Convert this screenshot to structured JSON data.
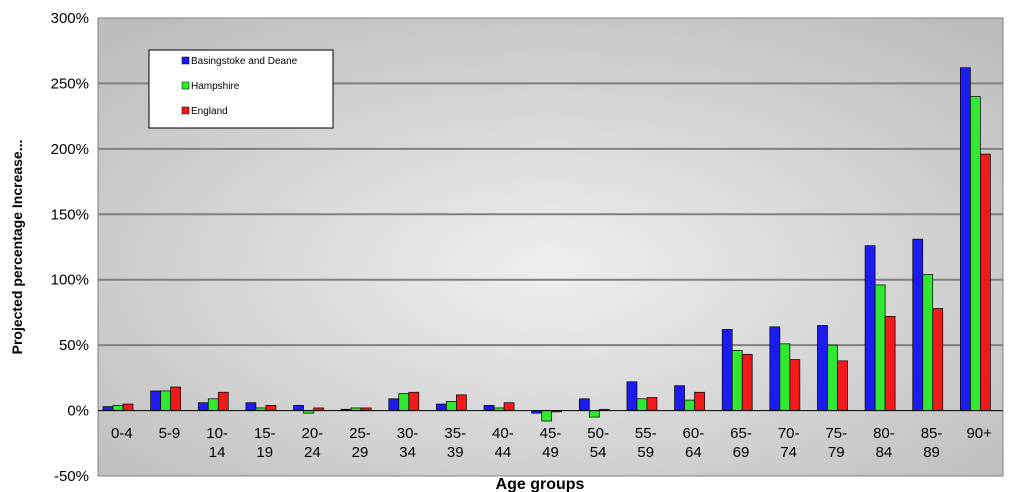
{
  "chart_data": {
    "type": "bar",
    "xlabel": "Age groups",
    "ylabel": "Projected percentage Increase...",
    "ylim": [
      -50,
      300
    ],
    "yticks": [
      -50,
      0,
      50,
      100,
      150,
      200,
      250,
      300
    ],
    "ytick_labels": [
      "-50%",
      "0%",
      "50%",
      "100%",
      "150%",
      "200%",
      "250%",
      "300%"
    ],
    "grid": true,
    "legend_position": "top-left",
    "categories": [
      {
        "line1": "0-4",
        "line2": ""
      },
      {
        "line1": "5-9",
        "line2": ""
      },
      {
        "line1": "10-",
        "line2": "14"
      },
      {
        "line1": "15-",
        "line2": "19"
      },
      {
        "line1": "20-",
        "line2": "24"
      },
      {
        "line1": "25-",
        "line2": "29"
      },
      {
        "line1": "30-",
        "line2": "34"
      },
      {
        "line1": "35-",
        "line2": "39"
      },
      {
        "line1": "40-",
        "line2": "44"
      },
      {
        "line1": "45-",
        "line2": "49"
      },
      {
        "line1": "50-",
        "line2": "54"
      },
      {
        "line1": "55-",
        "line2": "59"
      },
      {
        "line1": "60-",
        "line2": "64"
      },
      {
        "line1": "65-",
        "line2": "69"
      },
      {
        "line1": "70-",
        "line2": "74"
      },
      {
        "line1": "75-",
        "line2": "79"
      },
      {
        "line1": "80-",
        "line2": "84"
      },
      {
        "line1": "85-",
        "line2": "89"
      },
      {
        "line1": "90+",
        "line2": ""
      }
    ],
    "series": [
      {
        "name": "Basingstoke and Deane",
        "color": "#1c1cf0",
        "values": [
          3,
          15,
          6,
          6,
          4,
          1,
          9,
          5,
          4,
          -2,
          9,
          22,
          19,
          62,
          64,
          65,
          126,
          131,
          262
        ]
      },
      {
        "name": "Hampshire",
        "color": "#2fe82f",
        "values": [
          4,
          15,
          9,
          2,
          -2,
          2,
          13,
          7,
          2,
          -8,
          -5,
          9,
          8,
          46,
          51,
          50,
          96,
          104,
          240
        ]
      },
      {
        "name": "England",
        "color": "#f01a1a",
        "values": [
          5,
          18,
          14,
          4,
          2,
          2,
          14,
          12,
          6,
          -1,
          1,
          10,
          14,
          43,
          39,
          38,
          72,
          78,
          196
        ]
      }
    ]
  }
}
